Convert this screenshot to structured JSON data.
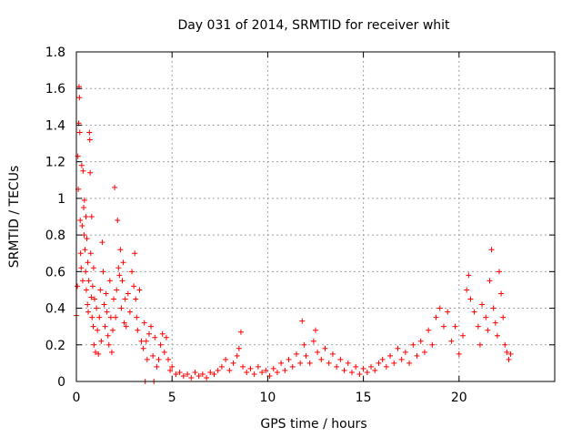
{
  "chart_data": {
    "type": "scatter",
    "title": "Day 031 of 2014, SRMTID for receiver whit",
    "xlabel": "GPS time / hours",
    "ylabel": "SRMTID / TECUs",
    "xlim": [
      0,
      25
    ],
    "ylim": [
      0,
      1.8
    ],
    "xticks": [
      0,
      5,
      10,
      15,
      20
    ],
    "xtick_labels": [
      "0",
      "5",
      "10",
      "15",
      "20"
    ],
    "yticks": [
      0,
      0.2,
      0.4,
      0.6,
      0.8,
      1,
      1.2,
      1.4,
      1.6,
      1.8
    ],
    "ytick_labels": [
      "0",
      "0.2",
      "0.4",
      "0.6",
      "0.8",
      "1",
      "1.2",
      "1.4",
      "1.6",
      "1.8"
    ],
    "grid": true,
    "marker": "+",
    "color": "#ff0000",
    "series": [
      {
        "name": "SRMTID",
        "points": [
          [
            0.0,
            0.36
          ],
          [
            0.05,
            0.52
          ],
          [
            0.08,
            1.23
          ],
          [
            0.1,
            1.05
          ],
          [
            0.12,
            1.41
          ],
          [
            0.14,
            1.61
          ],
          [
            0.16,
            1.55
          ],
          [
            0.18,
            1.36
          ],
          [
            0.2,
            0.88
          ],
          [
            0.22,
            0.7
          ],
          [
            0.25,
            0.62
          ],
          [
            0.28,
            1.18
          ],
          [
            0.3,
            0.85
          ],
          [
            0.33,
            0.55
          ],
          [
            0.35,
            1.15
          ],
          [
            0.38,
            0.95
          ],
          [
            0.4,
            0.8
          ],
          [
            0.42,
            0.99
          ],
          [
            0.45,
            0.72
          ],
          [
            0.48,
            0.6
          ],
          [
            0.5,
            0.9
          ],
          [
            0.52,
            0.5
          ],
          [
            0.55,
            0.78
          ],
          [
            0.58,
            0.42
          ],
          [
            0.6,
            0.65
          ],
          [
            0.62,
            0.38
          ],
          [
            0.65,
            0.55
          ],
          [
            0.68,
            1.36
          ],
          [
            0.7,
            1.32
          ],
          [
            0.72,
            1.14
          ],
          [
            0.75,
            0.7
          ],
          [
            0.78,
            0.46
          ],
          [
            0.8,
            0.9
          ],
          [
            0.82,
            0.35
          ],
          [
            0.85,
            0.52
          ],
          [
            0.88,
            0.3
          ],
          [
            0.9,
            0.62
          ],
          [
            0.92,
            0.2
          ],
          [
            0.95,
            0.45
          ],
          [
            1.0,
            0.16
          ],
          [
            1.05,
            0.4
          ],
          [
            1.1,
            0.28
          ],
          [
            1.15,
            0.15
          ],
          [
            1.2,
            0.35
          ],
          [
            1.25,
            0.5
          ],
          [
            1.3,
            0.22
          ],
          [
            1.35,
            0.76
          ],
          [
            1.4,
            0.6
          ],
          [
            1.45,
            0.42
          ],
          [
            1.5,
            0.3
          ],
          [
            1.55,
            0.48
          ],
          [
            1.6,
            0.38
          ],
          [
            1.65,
            0.25
          ],
          [
            1.7,
            0.2
          ],
          [
            1.75,
            0.55
          ],
          [
            1.8,
            0.35
          ],
          [
            1.85,
            0.16
          ],
          [
            1.9,
            0.28
          ],
          [
            1.95,
            0.45
          ],
          [
            2.0,
            1.06
          ],
          [
            2.05,
            0.35
          ],
          [
            2.1,
            0.5
          ],
          [
            2.15,
            0.88
          ],
          [
            2.2,
            0.62
          ],
          [
            2.25,
            0.58
          ],
          [
            2.3,
            0.72
          ],
          [
            2.35,
            0.4
          ],
          [
            2.4,
            0.55
          ],
          [
            2.45,
            0.65
          ],
          [
            2.5,
            0.32
          ],
          [
            2.55,
            0.45
          ],
          [
            2.6,
            0.3
          ],
          [
            2.7,
            0.48
          ],
          [
            2.8,
            0.38
          ],
          [
            2.9,
            0.6
          ],
          [
            3.0,
            0.52
          ],
          [
            3.05,
            0.7
          ],
          [
            3.1,
            0.45
          ],
          [
            3.15,
            0.35
          ],
          [
            3.2,
            0.28
          ],
          [
            3.3,
            0.5
          ],
          [
            3.4,
            0.22
          ],
          [
            3.5,
            0.18
          ],
          [
            3.55,
            0.32
          ],
          [
            3.6,
            0.0
          ],
          [
            3.65,
            0.22
          ],
          [
            3.7,
            0.12
          ],
          [
            3.8,
            0.26
          ],
          [
            3.9,
            0.3
          ],
          [
            4.0,
            0.14
          ],
          [
            4.05,
            0.0
          ],
          [
            4.1,
            0.24
          ],
          [
            4.2,
            0.08
          ],
          [
            4.3,
            0.12
          ],
          [
            4.4,
            0.2
          ],
          [
            4.5,
            0.26
          ],
          [
            4.6,
            0.16
          ],
          [
            4.7,
            0.24
          ],
          [
            4.8,
            0.12
          ],
          [
            4.9,
            0.06
          ],
          [
            5.0,
            0.08
          ],
          [
            5.2,
            0.04
          ],
          [
            5.4,
            0.05
          ],
          [
            5.6,
            0.03
          ],
          [
            5.8,
            0.04
          ],
          [
            6.0,
            0.02
          ],
          [
            6.2,
            0.05
          ],
          [
            6.4,
            0.03
          ],
          [
            6.6,
            0.04
          ],
          [
            6.8,
            0.02
          ],
          [
            7.0,
            0.05
          ],
          [
            7.2,
            0.04
          ],
          [
            7.4,
            0.06
          ],
          [
            7.6,
            0.08
          ],
          [
            7.8,
            0.12
          ],
          [
            8.0,
            0.06
          ],
          [
            8.2,
            0.1
          ],
          [
            8.4,
            0.14
          ],
          [
            8.5,
            0.18
          ],
          [
            8.6,
            0.27
          ],
          [
            8.7,
            0.08
          ],
          [
            8.9,
            0.05
          ],
          [
            9.1,
            0.07
          ],
          [
            9.3,
            0.04
          ],
          [
            9.5,
            0.08
          ],
          [
            9.7,
            0.05
          ],
          [
            9.9,
            0.06
          ],
          [
            10.1,
            0.03
          ],
          [
            10.3,
            0.07
          ],
          [
            10.5,
            0.05
          ],
          [
            10.7,
            0.1
          ],
          [
            10.9,
            0.06
          ],
          [
            11.1,
            0.12
          ],
          [
            11.3,
            0.08
          ],
          [
            11.5,
            0.15
          ],
          [
            11.7,
            0.1
          ],
          [
            11.8,
            0.33
          ],
          [
            11.9,
            0.2
          ],
          [
            12.0,
            0.14
          ],
          [
            12.2,
            0.1
          ],
          [
            12.4,
            0.22
          ],
          [
            12.5,
            0.28
          ],
          [
            12.6,
            0.16
          ],
          [
            12.8,
            0.12
          ],
          [
            13.0,
            0.18
          ],
          [
            13.2,
            0.1
          ],
          [
            13.4,
            0.15
          ],
          [
            13.6,
            0.08
          ],
          [
            13.8,
            0.12
          ],
          [
            14.0,
            0.06
          ],
          [
            14.2,
            0.1
          ],
          [
            14.4,
            0.05
          ],
          [
            14.6,
            0.08
          ],
          [
            14.8,
            0.04
          ],
          [
            15.0,
            0.07
          ],
          [
            15.2,
            0.05
          ],
          [
            15.4,
            0.08
          ],
          [
            15.6,
            0.06
          ],
          [
            15.8,
            0.1
          ],
          [
            16.0,
            0.12
          ],
          [
            16.2,
            0.08
          ],
          [
            16.4,
            0.14
          ],
          [
            16.6,
            0.1
          ],
          [
            16.8,
            0.18
          ],
          [
            17.0,
            0.12
          ],
          [
            17.2,
            0.16
          ],
          [
            17.4,
            0.1
          ],
          [
            17.6,
            0.2
          ],
          [
            17.8,
            0.14
          ],
          [
            18.0,
            0.22
          ],
          [
            18.2,
            0.16
          ],
          [
            18.4,
            0.28
          ],
          [
            18.6,
            0.2
          ],
          [
            18.8,
            0.35
          ],
          [
            19.0,
            0.4
          ],
          [
            19.2,
            0.3
          ],
          [
            19.4,
            0.38
          ],
          [
            19.6,
            0.22
          ],
          [
            19.8,
            0.3
          ],
          [
            20.0,
            0.15
          ],
          [
            20.2,
            0.25
          ],
          [
            20.4,
            0.5
          ],
          [
            20.5,
            0.58
          ],
          [
            20.6,
            0.45
          ],
          [
            20.8,
            0.38
          ],
          [
            21.0,
            0.3
          ],
          [
            21.1,
            0.2
          ],
          [
            21.2,
            0.42
          ],
          [
            21.4,
            0.35
          ],
          [
            21.5,
            0.28
          ],
          [
            21.6,
            0.55
          ],
          [
            21.7,
            0.72
          ],
          [
            21.8,
            0.4
          ],
          [
            21.9,
            0.32
          ],
          [
            22.0,
            0.25
          ],
          [
            22.1,
            0.6
          ],
          [
            22.2,
            0.48
          ],
          [
            22.3,
            0.35
          ],
          [
            22.4,
            0.2
          ],
          [
            22.5,
            0.16
          ],
          [
            22.6,
            0.12
          ],
          [
            22.7,
            0.15
          ]
        ]
      }
    ]
  }
}
